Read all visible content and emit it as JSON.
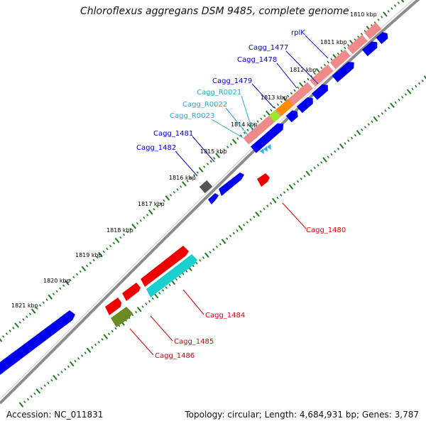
{
  "title": "Chloroflexus aggregans DSM 9485, complete genome",
  "footer": {
    "accession": "Accession: NC_011831",
    "summary": "Topology: circular; Length: 4,684,931 bp; Genes: 3,787"
  },
  "colors": {
    "backbone": "#8c8c8c",
    "tick": "#1a7a1a",
    "gene_blue": "#0000ee",
    "gene_pink": "#f08a8a",
    "gene_red": "#ee0000",
    "gene_cyan": "#1ccfcf",
    "gene_olive": "#6b8a22",
    "gene_orange": "#ff8c00",
    "gene_lime": "#9be52a",
    "gene_gray": "#555555",
    "rna_light": "#2ab0f0",
    "label_blue": "#0000cc",
    "label_lightblue": "#22aadd",
    "label_red": "#dd0000"
  },
  "kbp_labels": [
    "1810 kbp",
    "1811 kbp",
    "1812 kbp",
    "1813 kbp",
    "1814 kbp",
    "1815 kbp",
    "1816 kbp",
    "1817 kbp",
    "1818 kbp",
    "1819 kbp",
    "1820 kbp",
    "1821 kbp"
  ],
  "gene_labels": [
    {
      "id": "rplK",
      "text": "rplK",
      "color": "label_blue"
    },
    {
      "id": "cagg1477",
      "text": "Cagg_1477",
      "color": "label_blue"
    },
    {
      "id": "cagg1478",
      "text": "Cagg_1478",
      "color": "label_blue"
    },
    {
      "id": "cagg1479",
      "text": "Cagg_1479",
      "color": "label_blue"
    },
    {
      "id": "caggr0021",
      "text": "Cagg_R0021",
      "color": "label_lightblue"
    },
    {
      "id": "caggr0022",
      "text": "Cagg_R0022",
      "color": "label_lightblue"
    },
    {
      "id": "caggr0023",
      "text": "Cagg_R0023",
      "color": "label_lightblue"
    },
    {
      "id": "cagg1481",
      "text": "Cagg_1481",
      "color": "label_blue"
    },
    {
      "id": "cagg1482",
      "text": "Cagg_1482",
      "color": "label_blue"
    },
    {
      "id": "cagg1480",
      "text": "Cagg_1480",
      "color": "label_red"
    },
    {
      "id": "cagg1484",
      "text": "Cagg_1484",
      "color": "label_red"
    },
    {
      "id": "cagg1485",
      "text": "Cagg_1485",
      "color": "label_red"
    },
    {
      "id": "cagg1486",
      "text": "Cagg_1486",
      "color": "label_red"
    }
  ]
}
